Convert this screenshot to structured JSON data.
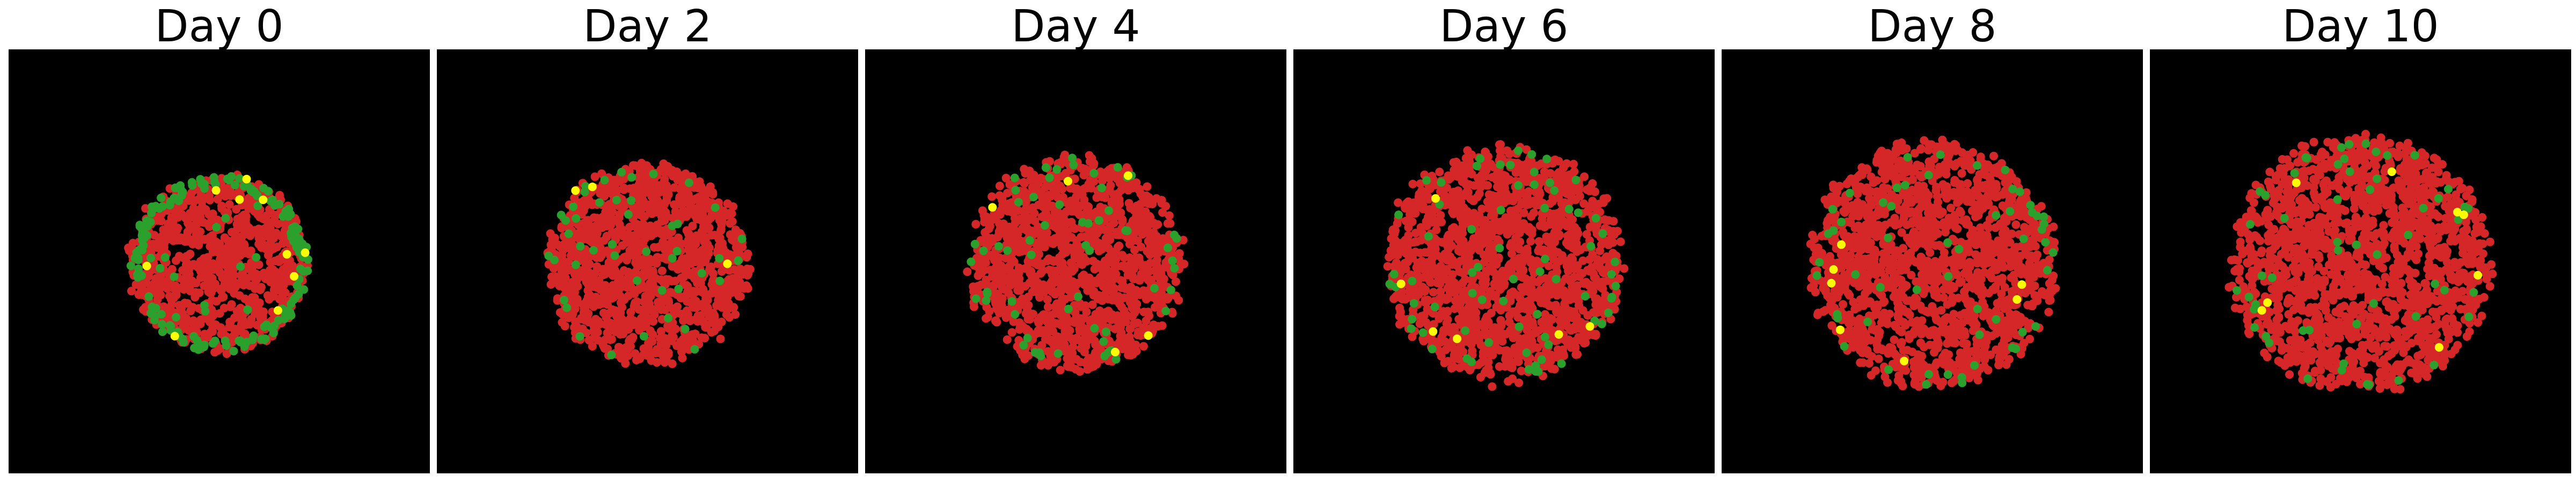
{
  "chart_data": [
    {
      "type": "scatter",
      "title": "Day 0",
      "spread": 0.62,
      "rim": 0.82,
      "counts": {
        "red": 900,
        "green": 170,
        "yellow": 10
      }
    },
    {
      "type": "scatter",
      "title": "Day 2",
      "spread": 0.7,
      "rim": 0.35,
      "counts": {
        "red": 1250,
        "green": 45,
        "yellow": 3
      }
    },
    {
      "type": "scatter",
      "title": "Day 4",
      "spread": 0.74,
      "rim": 0.35,
      "counts": {
        "red": 1350,
        "green": 60,
        "yellow": 5
      }
    },
    {
      "type": "scatter",
      "title": "Day 6",
      "spread": 0.82,
      "rim": 0.35,
      "counts": {
        "red": 1500,
        "green": 70,
        "yellow": 6
      }
    },
    {
      "type": "scatter",
      "title": "Day 8",
      "spread": 0.86,
      "rim": 0.35,
      "counts": {
        "red": 1600,
        "green": 55,
        "yellow": 7
      }
    },
    {
      "type": "scatter",
      "title": "Day 10",
      "spread": 0.9,
      "rim": 0.35,
      "counts": {
        "red": 1700,
        "green": 55,
        "yellow": 8
      }
    }
  ],
  "colors": {
    "background": "#000000",
    "red": "#d62728",
    "green": "#2ca02c",
    "yellow": "#ffff00"
  }
}
